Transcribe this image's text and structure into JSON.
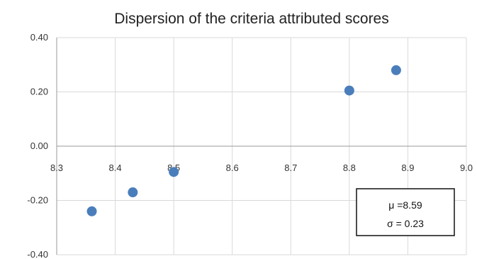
{
  "chart_data": {
    "type": "scatter",
    "title": "Dispersion of the criteria  attributed scores",
    "xlabel": "",
    "ylabel": "",
    "xlim": [
      8.3,
      9.0
    ],
    "ylim": [
      -0.4,
      0.4
    ],
    "x_ticks": [
      "8.3",
      "8.4",
      "8.5",
      "8.6",
      "8.7",
      "8.8",
      "8.9",
      "9.0"
    ],
    "y_ticks": [
      "0.40",
      "0.20",
      "0.00",
      "-0.20",
      "-0.40"
    ],
    "grid": true,
    "legend": "none",
    "marker_color": "#4A7EBB",
    "series": [
      {
        "points": [
          {
            "x": 8.36,
            "y": -0.24
          },
          {
            "x": 8.43,
            "y": -0.17
          },
          {
            "x": 8.5,
            "y": -0.095
          },
          {
            "x": 8.8,
            "y": 0.205
          },
          {
            "x": 8.88,
            "y": 0.28
          }
        ]
      }
    ],
    "annotation": {
      "mean_label": "μ =8.59",
      "sd_label": "σ = 0.23"
    }
  }
}
